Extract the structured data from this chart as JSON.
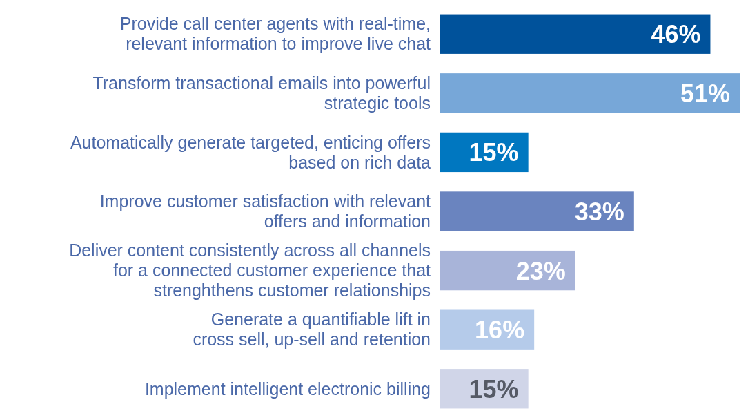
{
  "chart_data": {
    "type": "bar",
    "orientation": "horizontal",
    "value_labels": [
      "46%",
      "51%",
      "15%",
      "33%",
      "23%",
      "16%",
      "15%"
    ],
    "categories": [
      "Provide call center agents with real-time,\nrelevant information to improve live chat",
      "Transform transactional emails into powerful\nstrategic tools",
      "Automatically generate targeted, enticing offers\nbased on rich data",
      "Improve customer satisfaction with relevant\noffers and information",
      "Deliver content consistently across all channels\nfor a connected customer experience that\nstrenghthens customer relationships",
      "Generate a quantifiable lift in\ncross sell, up-sell and retention",
      "Implement intelligent electronic billing"
    ],
    "values": [
      46,
      51,
      15,
      33,
      23,
      16,
      15
    ],
    "colors": [
      "#00529b",
      "#77a7d8",
      "#0077c0",
      "#6a84bf",
      "#a8b4d9",
      "#b5cbea",
      "#d0d5e8"
    ]
  }
}
